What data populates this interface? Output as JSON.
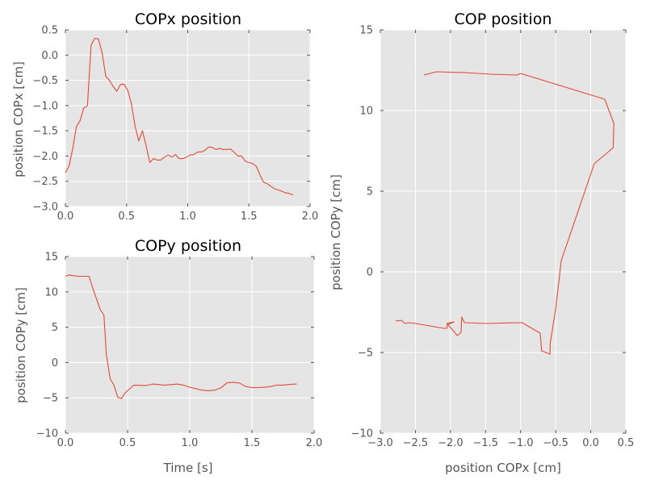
{
  "chart_data": [
    {
      "id": "copx",
      "type": "line",
      "title": "COPx position",
      "xlabel": "",
      "ylabel": "position COPx [cm]",
      "xlim": [
        0,
        2
      ],
      "ylim": [
        -3,
        0.5
      ],
      "xticks": [
        0,
        0.5,
        1,
        1.5,
        2
      ],
      "xtick_labels": [
        "0.0",
        "0.5",
        "1.0",
        "1.5",
        "2.0"
      ],
      "yticks": [
        -3,
        -2.5,
        -2,
        -1.5,
        -1,
        -0.5,
        0,
        0.5
      ],
      "ytick_labels": [
        "−3.0",
        "−2.5",
        "−2.0",
        "−1.5",
        "−1.0",
        "−0.5",
        "0.0",
        "0.5"
      ],
      "grid": true,
      "series": [
        {
          "color": "#e24a33",
          "x": [
            0.0,
            0.03,
            0.06,
            0.09,
            0.12,
            0.15,
            0.18,
            0.21,
            0.24,
            0.27,
            0.3,
            0.33,
            0.36,
            0.39,
            0.42,
            0.45,
            0.48,
            0.51,
            0.54,
            0.57,
            0.6,
            0.63,
            0.66,
            0.69,
            0.72,
            0.75,
            0.78,
            0.81,
            0.84,
            0.87,
            0.9,
            0.93,
            0.96,
            0.99,
            1.02,
            1.05,
            1.08,
            1.11,
            1.14,
            1.17,
            1.2,
            1.23,
            1.26,
            1.29,
            1.32,
            1.35,
            1.38,
            1.41,
            1.44,
            1.47,
            1.5,
            1.53,
            1.56,
            1.59,
            1.62,
            1.65,
            1.68,
            1.71,
            1.74,
            1.77,
            1.8,
            1.83,
            1.86
          ],
          "y": [
            -2.33,
            -2.2,
            -1.85,
            -1.42,
            -1.3,
            -1.05,
            -1.0,
            0.2,
            0.33,
            0.32,
            0.05,
            -0.42,
            -0.5,
            -0.62,
            -0.72,
            -0.58,
            -0.58,
            -0.7,
            -0.97,
            -1.42,
            -1.7,
            -1.5,
            -1.8,
            -2.13,
            -2.05,
            -2.08,
            -2.08,
            -2.02,
            -1.98,
            -2.02,
            -1.97,
            -2.05,
            -2.05,
            -2.02,
            -1.98,
            -1.97,
            -1.92,
            -1.92,
            -1.89,
            -1.82,
            -1.83,
            -1.87,
            -1.85,
            -1.87,
            -1.87,
            -1.86,
            -1.93,
            -2.0,
            -2.0,
            -2.1,
            -2.13,
            -2.15,
            -2.2,
            -2.37,
            -2.52,
            -2.55,
            -2.6,
            -2.65,
            -2.67,
            -2.7,
            -2.73,
            -2.74,
            -2.77
          ]
        }
      ]
    },
    {
      "id": "copy",
      "type": "line",
      "title": "COPy position",
      "xlabel": "Time [s]",
      "ylabel": "position COPy [cm]",
      "xlim": [
        0,
        2
      ],
      "ylim": [
        -10,
        15
      ],
      "xticks": [
        0,
        0.5,
        1,
        1.5,
        2
      ],
      "xtick_labels": [
        "0.0",
        "0.5",
        "1.0",
        "1.5",
        "2.0"
      ],
      "yticks": [
        -10,
        -5,
        0,
        5,
        10,
        15
      ],
      "ytick_labels": [
        "−10",
        "−5",
        "0",
        "5",
        "10",
        "15"
      ],
      "grid": true,
      "series": [
        {
          "color": "#e24a33",
          "x": [
            0.0,
            0.03,
            0.06,
            0.1,
            0.14,
            0.19,
            0.22,
            0.25,
            0.28,
            0.31,
            0.33,
            0.36,
            0.39,
            0.42,
            0.45,
            0.48,
            0.55,
            0.65,
            0.7,
            0.8,
            0.9,
            0.95,
            1.0,
            1.05,
            1.1,
            1.15,
            1.2,
            1.25,
            1.3,
            1.35,
            1.4,
            1.45,
            1.5,
            1.55,
            1.6,
            1.65,
            1.7,
            1.75,
            1.8,
            1.86
          ],
          "y": [
            12.2,
            12.4,
            12.3,
            12.2,
            12.2,
            12.2,
            10.5,
            9.0,
            7.5,
            6.7,
            1.0,
            -2.3,
            -3.2,
            -4.9,
            -5.1,
            -4.3,
            -3.2,
            -3.25,
            -3.05,
            -3.2,
            -3.05,
            -3.2,
            -3.5,
            -3.7,
            -3.9,
            -4.0,
            -3.9,
            -3.6,
            -2.85,
            -2.8,
            -2.9,
            -3.4,
            -3.55,
            -3.55,
            -3.5,
            -3.4,
            -3.2,
            -3.2,
            -3.1,
            -3.05
          ]
        }
      ]
    },
    {
      "id": "cop",
      "type": "line",
      "title": "COP position",
      "xlabel": "position COPx [cm]",
      "ylabel": "position COPy [cm]",
      "xlim": [
        -3,
        0.5
      ],
      "ylim": [
        -10,
        15
      ],
      "xticks": [
        -3,
        -2.5,
        -2,
        -1.5,
        -1,
        -0.5,
        0,
        0.5
      ],
      "xtick_labels": [
        "−3.0",
        "−2.5",
        "−2.0",
        "−1.5",
        "−1.0",
        "−0.5",
        "0.0",
        "0.5"
      ],
      "yticks": [
        -10,
        -5,
        0,
        5,
        10,
        15
      ],
      "ytick_labels": [
        "−10",
        "−5",
        "0",
        "5",
        "10",
        "15"
      ],
      "grid": true,
      "series": [
        {
          "color": "#e24a33",
          "x": [
            -2.38,
            -2.2,
            -1.8,
            -1.42,
            -1.05,
            -1.0,
            0.2,
            0.33,
            0.32,
            0.05,
            -0.42,
            -0.5,
            -0.58,
            -0.58,
            -0.7,
            -0.72,
            -0.98,
            -1.5,
            -1.8,
            -1.84,
            -1.85,
            -1.9,
            -2.05,
            -1.95,
            -2.05,
            -2.05,
            -2.1,
            -2.3,
            -2.5,
            -2.6,
            -2.65,
            -2.7,
            -2.75,
            -2.78
          ],
          "y": [
            12.2,
            12.4,
            12.35,
            12.25,
            12.2,
            12.3,
            10.7,
            9.2,
            7.7,
            6.7,
            0.7,
            -2.3,
            -4.5,
            -5.1,
            -4.9,
            -3.8,
            -3.15,
            -3.2,
            -3.15,
            -2.8,
            -3.75,
            -3.95,
            -3.2,
            -3.1,
            -3.3,
            -3.5,
            -3.5,
            -3.35,
            -3.2,
            -3.15,
            -3.2,
            -3.0,
            -3.05,
            -3.0
          ]
        }
      ]
    }
  ]
}
